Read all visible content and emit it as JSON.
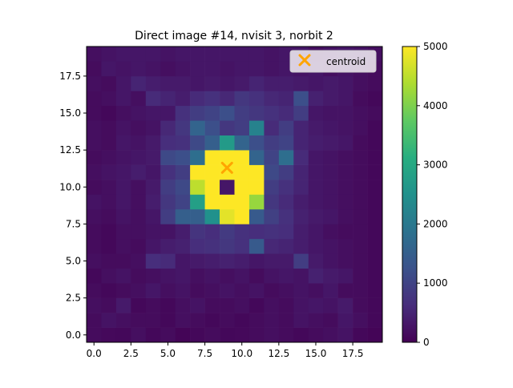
{
  "chart_data": {
    "type": "heatmap",
    "title": "Direct image #14, nvisit 3, norbit 2",
    "xlabel": "",
    "ylabel": "",
    "xlim": [
      -0.5,
      19.5
    ],
    "ylim": [
      -0.5,
      19.5
    ],
    "x_ticks": [
      0.0,
      2.5,
      5.0,
      7.5,
      10.0,
      12.5,
      15.0,
      17.5
    ],
    "y_ticks": [
      0.0,
      2.5,
      5.0,
      7.5,
      10.0,
      12.5,
      15.0,
      17.5
    ],
    "x_tick_labels": [
      "0.0",
      "2.5",
      "5.0",
      "7.5",
      "10.0",
      "12.5",
      "15.0",
      "17.5"
    ],
    "y_tick_labels": [
      "0.0",
      "2.5",
      "5.0",
      "7.5",
      "10.0",
      "12.5",
      "15.0",
      "17.5"
    ],
    "colormap": "viridis",
    "vmin": 0,
    "vmax": 5000,
    "colorbar_ticks": [
      0,
      1000,
      2000,
      3000,
      4000,
      5000
    ],
    "colorbar_tick_labels": [
      "0",
      "1000",
      "2000",
      "3000",
      "4000",
      "5000"
    ],
    "legend": {
      "location": "upper right",
      "entries": [
        {
          "label": "centroid",
          "marker": "x",
          "color": "#ffa500"
        }
      ]
    },
    "centroid": {
      "x": 9.0,
      "y": 11.3
    },
    "grid": false,
    "values_note": "rows listed from y=0 (bottom) to y=19 (top), 20 columns x=0..19",
    "values": [
      [
        150,
        120,
        100,
        200,
        100,
        150,
        50,
        100,
        150,
        100,
        120,
        150,
        200,
        150,
        100,
        150,
        200,
        250,
        100,
        50
      ],
      [
        150,
        250,
        200,
        150,
        150,
        100,
        200,
        150,
        100,
        150,
        100,
        150,
        200,
        150,
        250,
        200,
        150,
        300,
        200,
        100
      ],
      [
        200,
        150,
        350,
        100,
        150,
        100,
        200,
        250,
        150,
        150,
        200,
        100,
        200,
        150,
        250,
        300,
        250,
        350,
        150,
        100
      ],
      [
        150,
        100,
        150,
        200,
        300,
        200,
        250,
        150,
        200,
        250,
        200,
        250,
        150,
        200,
        250,
        200,
        300,
        150,
        150,
        100
      ],
      [
        100,
        200,
        250,
        150,
        200,
        250,
        300,
        200,
        250,
        200,
        250,
        150,
        250,
        300,
        250,
        450,
        350,
        300,
        150,
        100
      ],
      [
        200,
        150,
        150,
        200,
        650,
        600,
        300,
        350,
        400,
        450,
        400,
        300,
        350,
        350,
        900,
        350,
        250,
        200,
        150,
        100
      ],
      [
        150,
        100,
        200,
        150,
        300,
        400,
        450,
        650,
        700,
        800,
        700,
        1400,
        550,
        500,
        400,
        300,
        250,
        200,
        150,
        100
      ],
      [
        150,
        100,
        200,
        200,
        250,
        250,
        400,
        750,
        650,
        850,
        700,
        650,
        700,
        650,
        400,
        300,
        200,
        150,
        150,
        100
      ],
      [
        200,
        150,
        250,
        200,
        300,
        900,
        1500,
        1500,
        2500,
        4800,
        5000,
        1400,
        950,
        700,
        450,
        350,
        300,
        200,
        150,
        100
      ],
      [
        250,
        200,
        300,
        200,
        400,
        800,
        1000,
        2800,
        5000,
        5000,
        5000,
        4200,
        800,
        600,
        400,
        300,
        250,
        200,
        150,
        100
      ],
      [
        150,
        200,
        300,
        200,
        350,
        900,
        1100,
        4500,
        5000,
        300,
        5000,
        5000,
        900,
        700,
        500,
        300,
        250,
        200,
        150,
        100
      ],
      [
        200,
        250,
        300,
        400,
        300,
        700,
        900,
        5000,
        5000,
        5000,
        5000,
        5000,
        1100,
        900,
        500,
        300,
        250,
        200,
        150,
        100
      ],
      [
        150,
        200,
        250,
        300,
        350,
        1100,
        1200,
        1800,
        5000,
        5000,
        5000,
        1600,
        1000,
        1800,
        600,
        300,
        250,
        200,
        150,
        100
      ],
      [
        200,
        150,
        300,
        250,
        350,
        650,
        700,
        1100,
        1500,
        2700,
        1600,
        1200,
        900,
        1000,
        500,
        400,
        350,
        300,
        150,
        100
      ],
      [
        200,
        150,
        250,
        200,
        250,
        550,
        800,
        1600,
        1200,
        800,
        900,
        2200,
        600,
        900,
        500,
        350,
        300,
        250,
        200,
        100
      ],
      [
        150,
        100,
        200,
        250,
        300,
        300,
        700,
        900,
        1000,
        1200,
        900,
        800,
        700,
        600,
        900,
        300,
        250,
        250,
        200,
        150
      ],
      [
        150,
        200,
        300,
        200,
        600,
        500,
        400,
        600,
        700,
        550,
        800,
        700,
        550,
        500,
        1200,
        450,
        350,
        300,
        150,
        100
      ],
      [
        200,
        150,
        300,
        500,
        400,
        350,
        350,
        300,
        350,
        300,
        350,
        500,
        400,
        400,
        350,
        300,
        350,
        300,
        200,
        150
      ],
      [
        150,
        300,
        250,
        300,
        250,
        200,
        250,
        300,
        300,
        250,
        300,
        300,
        250,
        300,
        250,
        300,
        200,
        250,
        200,
        150
      ],
      [
        200,
        250,
        300,
        300,
        300,
        250,
        300,
        300,
        300,
        300,
        300,
        300,
        250,
        300,
        300,
        200,
        250,
        300,
        250,
        200
      ]
    ]
  }
}
